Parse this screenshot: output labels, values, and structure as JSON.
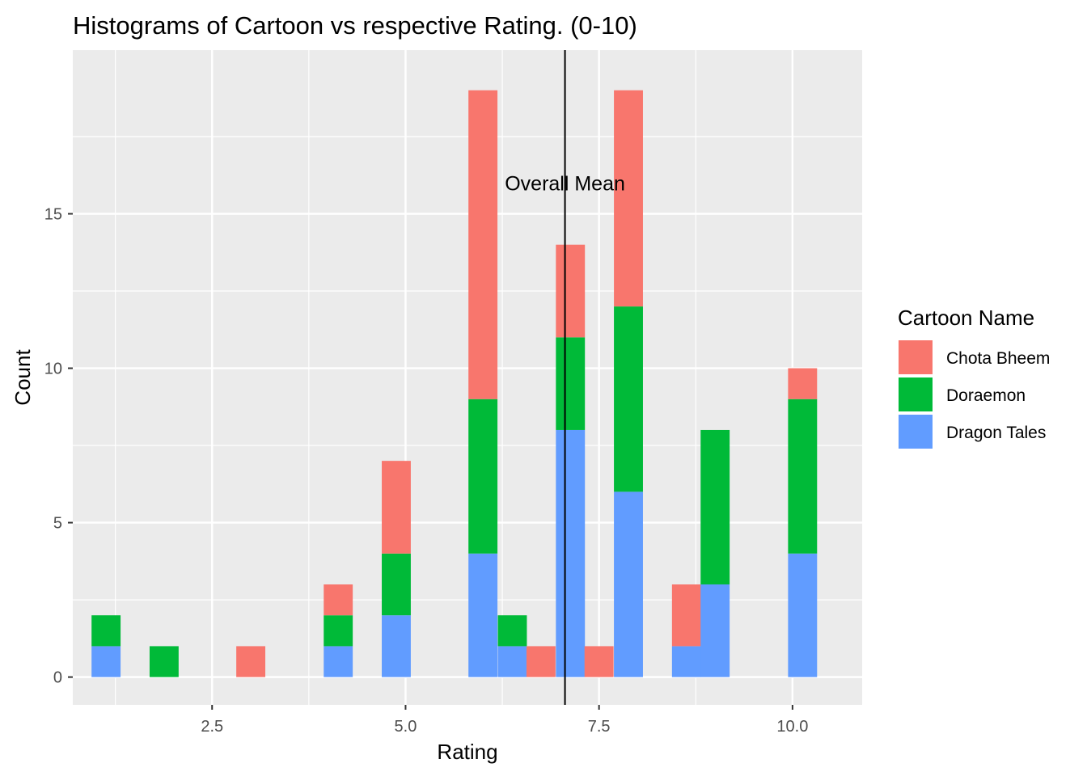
{
  "chart_data": {
    "type": "bar",
    "title": "Histograms of Cartoon vs respective Rating. (0-10)",
    "xlabel": "Rating",
    "ylabel": "Count",
    "xlim": [
      0.7,
      10.9
    ],
    "ylim": [
      -0.9,
      20.3
    ],
    "xticks": [
      2.5,
      5.0,
      7.5,
      10.0
    ],
    "xtick_labels": [
      "2.5",
      "5.0",
      "7.5",
      "10.0"
    ],
    "yticks": [
      0,
      5,
      10,
      15
    ],
    "ytick_labels": [
      "0",
      "5",
      "10",
      "15"
    ],
    "grid": true,
    "stacked": true,
    "bin_width": 0.375,
    "bin_centers": [
      1.13,
      1.88,
      3.0,
      4.13,
      4.88,
      6.0,
      6.38,
      6.75,
      7.13,
      7.5,
      7.88,
      8.63,
      9.0,
      10.13
    ],
    "series": [
      {
        "name": "Dragon Tales",
        "color": "#619CFF",
        "values": [
          1,
          0,
          0,
          1,
          2,
          4,
          1,
          0,
          8,
          0,
          6,
          1,
          3,
          4
        ]
      },
      {
        "name": "Doraemon",
        "color": "#00BA38",
        "values": [
          1,
          1,
          0,
          1,
          2,
          5,
          1,
          0,
          3,
          0,
          6,
          0,
          5,
          5
        ]
      },
      {
        "name": "Chota Bheem",
        "color": "#F8766D",
        "values": [
          0,
          0,
          1,
          1,
          3,
          10,
          0,
          1,
          3,
          1,
          7,
          2,
          0,
          1
        ]
      }
    ],
    "legend": {
      "title": "Cartoon Name",
      "position": "right",
      "entries": [
        {
          "name": "Chota Bheem",
          "color": "#F8766D"
        },
        {
          "name": "Doraemon",
          "color": "#00BA38"
        },
        {
          "name": "Dragon Tales",
          "color": "#619CFF"
        }
      ]
    },
    "vline": {
      "x": 7.06,
      "label": "Overall Mean",
      "label_y": 16.0,
      "color": "#000000"
    },
    "panel_background": "#EBEBEB",
    "grid_color": "#FFFFFF"
  }
}
